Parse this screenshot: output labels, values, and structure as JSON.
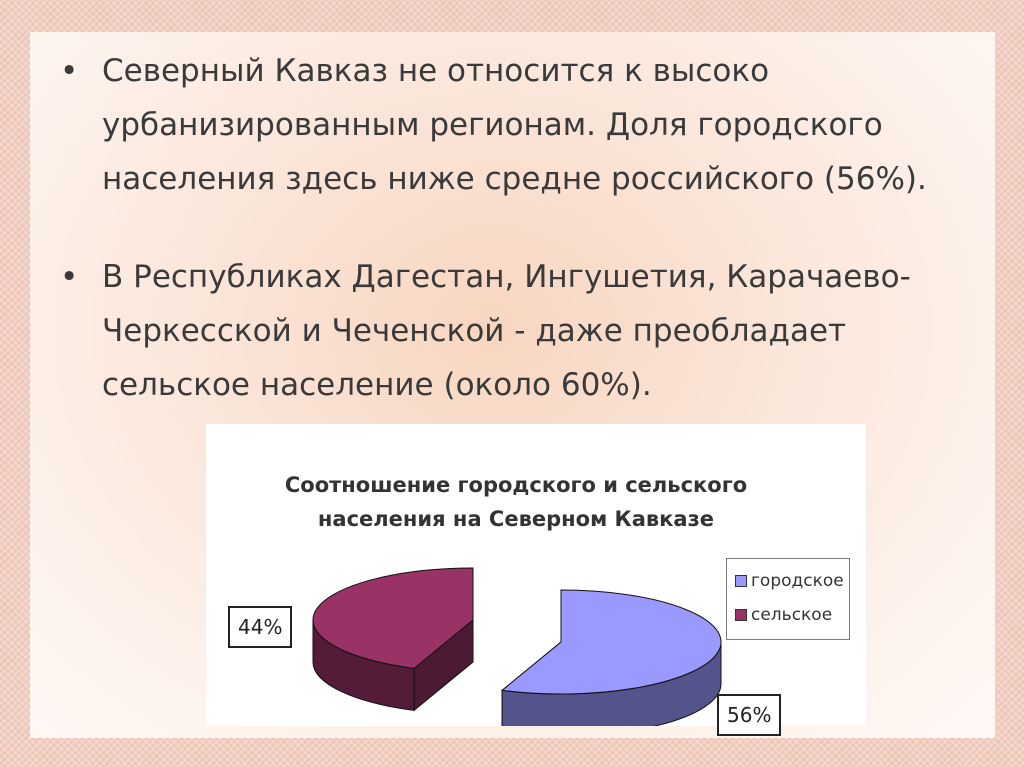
{
  "bullets": [
    {
      "marker": "•",
      "text": "Северный Кавказ не относится к высоко урбанизированным регионам. Доля городского населения здесь ниже средне российского (56%)."
    },
    {
      "marker": "•",
      "text": "В Республиках Дагестан, Ингушетия, Карачаево-Черкесской и Чеченской - даже преобладает сельское население (около 60%)."
    }
  ],
  "chart_data": {
    "type": "pie",
    "title": "Соотношение городского и сельского населения на Северном Кавказе",
    "categories": [
      "городское",
      "сельское"
    ],
    "values": [
      56,
      44
    ],
    "data_labels": [
      "56%",
      "44%"
    ],
    "colors": [
      "#9999ff",
      "#993366"
    ],
    "legend_position": "right",
    "style": "3d-exploded"
  }
}
